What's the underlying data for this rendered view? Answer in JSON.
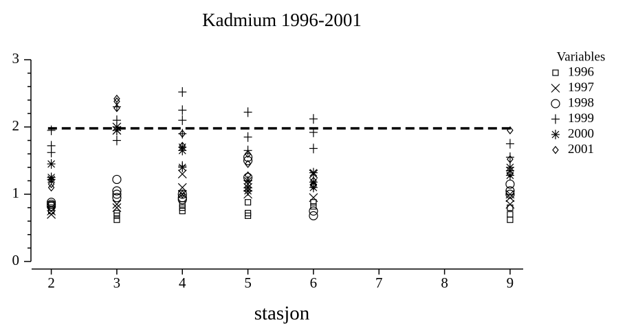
{
  "chart_data": {
    "type": "scatter",
    "title": "Kadmium 1996-2001",
    "x_label": "stasjon",
    "xlim": [
      1.7,
      9.2
    ],
    "ylim": [
      0,
      3
    ],
    "xticks": [
      2,
      3,
      4,
      5,
      6,
      7,
      8,
      9
    ],
    "yticks": [
      0,
      1,
      2,
      3
    ],
    "yticks_minor": [
      0.2,
      0.4,
      0.6,
      0.8,
      1.2,
      1.4,
      1.6,
      1.8,
      2.2,
      2.4,
      2.6,
      2.8
    ],
    "reference_line": 1.98,
    "legend_title": "Variables",
    "series": [
      {
        "name": "1996",
        "marker": "square",
        "color": "#000000",
        "x": [
          2,
          2,
          2,
          3,
          3,
          3,
          4,
          4,
          4,
          5,
          5,
          5,
          6,
          6,
          9,
          9,
          9
        ],
        "values": [
          0.75,
          0.8,
          0.85,
          0.62,
          0.68,
          0.72,
          0.75,
          0.8,
          0.85,
          0.68,
          0.72,
          0.88,
          0.82,
          0.88,
          0.62,
          0.7,
          0.8
        ]
      },
      {
        "name": "1997",
        "marker": "x",
        "color": "#000000",
        "x": [
          2,
          2,
          3,
          3,
          3,
          3,
          4,
          4,
          4,
          5,
          5,
          5,
          6,
          6,
          9,
          9,
          9
        ],
        "values": [
          0.7,
          0.75,
          0.8,
          0.85,
          2.0,
          1.95,
          1.1,
          1.3,
          1.0,
          1.0,
          1.1,
          1.15,
          1.3,
          0.95,
          0.85,
          0.95,
          1.0
        ]
      },
      {
        "name": "1998",
        "marker": "circle",
        "color": "#000000",
        "x": [
          2,
          2,
          2,
          3,
          3,
          3,
          3,
          4,
          4,
          4,
          5,
          5,
          5,
          6,
          6,
          9,
          9,
          9
        ],
        "values": [
          0.82,
          0.85,
          0.88,
          1.22,
          1.05,
          1.0,
          0.95,
          0.95,
          1.0,
          0.92,
          1.55,
          1.25,
          1.5,
          0.68,
          0.75,
          1.15,
          1.05,
          1.0
        ]
      },
      {
        "name": "1999",
        "marker": "plus",
        "color": "#000000",
        "x": [
          2,
          2,
          2,
          3,
          3,
          3,
          3,
          4,
          4,
          4,
          4,
          4,
          5,
          5,
          5,
          5,
          6,
          6,
          6,
          9,
          9,
          9
        ],
        "values": [
          1.95,
          1.72,
          1.62,
          2.1,
          1.8,
          1.95,
          2.3,
          2.52,
          2.25,
          2.1,
          1.9,
          1.42,
          2.22,
          1.85,
          1.65,
          1.2,
          2.12,
          1.92,
          1.68,
          1.75,
          1.55,
          1.35
        ]
      },
      {
        "name": "2000",
        "marker": "asterisk",
        "color": "#000000",
        "x": [
          2,
          2,
          2,
          3,
          3,
          4,
          4,
          4,
          5,
          5,
          5,
          6,
          6,
          6,
          9,
          9,
          9
        ],
        "values": [
          1.45,
          1.25,
          1.22,
          2.0,
          1.95,
          1.7,
          1.65,
          1.4,
          1.05,
          1.1,
          1.2,
          1.32,
          1.18,
          1.1,
          1.4,
          1.35,
          1.28
        ]
      },
      {
        "name": "2001",
        "marker": "diamond",
        "color": "#000000",
        "x": [
          2,
          2,
          2,
          3,
          3,
          3,
          4,
          4,
          4,
          5,
          5,
          5,
          6,
          6,
          6,
          9,
          9,
          9
        ],
        "values": [
          1.1,
          1.15,
          1.22,
          2.42,
          2.38,
          2.28,
          1.9,
          1.72,
          1.0,
          1.6,
          1.45,
          1.28,
          1.2,
          1.15,
          1.12,
          1.95,
          1.52,
          1.3
        ]
      }
    ]
  }
}
